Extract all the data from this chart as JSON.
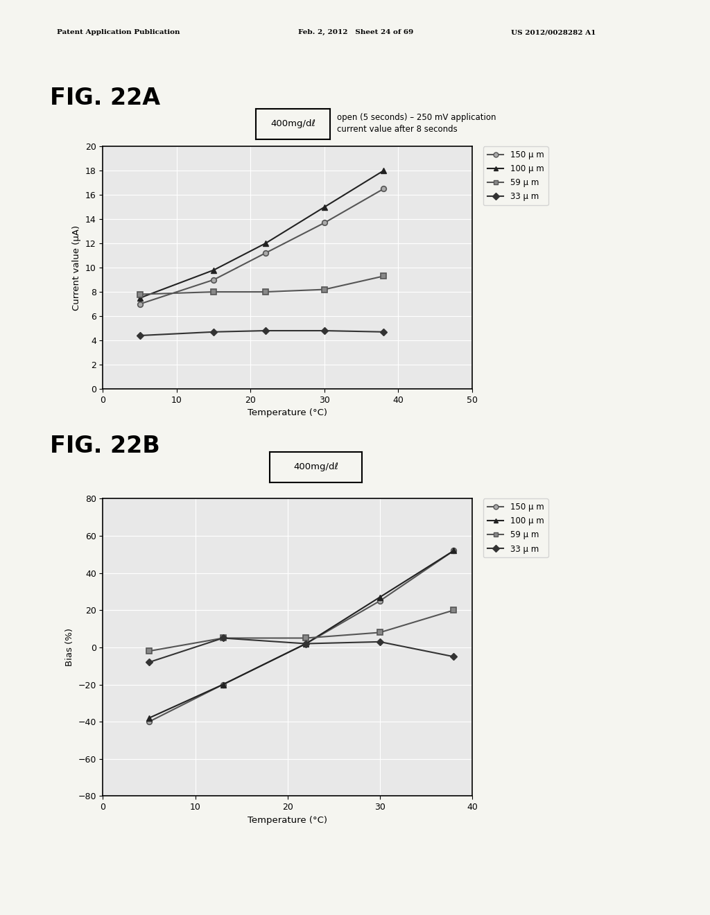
{
  "header_left": "Patent Application Publication",
  "header_mid": "Feb. 2, 2012   Sheet 24 of 69",
  "header_right": "US 2012/0028282 A1",
  "fig22a_label": "FIG. 22A",
  "fig22b_label": "FIG. 22B",
  "annotation_box_text_22a": "400mg/dℓ",
  "annotation_text_22a": "open (5 seconds) – 250 mV application\ncurrent value after 8 seconds",
  "annotation_box_text_22b": "400mg/dℓ",
  "fig22a_xlabel": "Temperature (°C)",
  "fig22a_ylabel": "Current value (μA)",
  "fig22a_xlim": [
    0,
    50
  ],
  "fig22a_ylim": [
    0,
    20
  ],
  "fig22a_xticks": [
    0,
    10,
    20,
    30,
    40,
    50
  ],
  "fig22a_yticks": [
    0,
    2,
    4,
    6,
    8,
    10,
    12,
    14,
    16,
    18,
    20
  ],
  "fig22a_x": [
    5,
    15,
    22,
    30,
    38
  ],
  "fig22a_150um": [
    7.0,
    9.0,
    11.2,
    13.7,
    16.5
  ],
  "fig22a_100um": [
    7.5,
    9.8,
    12.0,
    15.0,
    18.0
  ],
  "fig22a_59um": [
    7.8,
    8.0,
    8.0,
    8.2,
    9.3
  ],
  "fig22a_33um": [
    4.4,
    4.7,
    4.8,
    4.8,
    4.7
  ],
  "fig22b_xlabel": "Temperature (°C)",
  "fig22b_ylabel": "Bias (%)",
  "fig22b_xlim": [
    0,
    40
  ],
  "fig22b_ylim": [
    -80,
    80
  ],
  "fig22b_xticks": [
    0,
    10,
    20,
    30,
    40
  ],
  "fig22b_yticks": [
    -80,
    -60,
    -40,
    -20,
    0,
    20,
    40,
    60,
    80
  ],
  "fig22b_x": [
    5,
    13,
    22,
    30,
    38
  ],
  "fig22b_150um": [
    -40.0,
    -20.0,
    2.0,
    25.0,
    52.0
  ],
  "fig22b_100um": [
    -38.0,
    -20.0,
    2.0,
    27.0,
    52.0
  ],
  "fig22b_59um": [
    -2.0,
    5.0,
    5.0,
    8.0,
    20.0
  ],
  "fig22b_33um": [
    -8.0,
    5.0,
    2.0,
    3.0,
    -5.0
  ],
  "color_150um": "#555555",
  "color_100um": "#222222",
  "color_59um": "#555555",
  "color_33um": "#333333",
  "legend_labels": [
    "150 μ m",
    "100 μ m",
    "59 μ m",
    "33 μ m"
  ],
  "plot_bg": "#e8e8e8",
  "page_bg": "#f5f5f0"
}
